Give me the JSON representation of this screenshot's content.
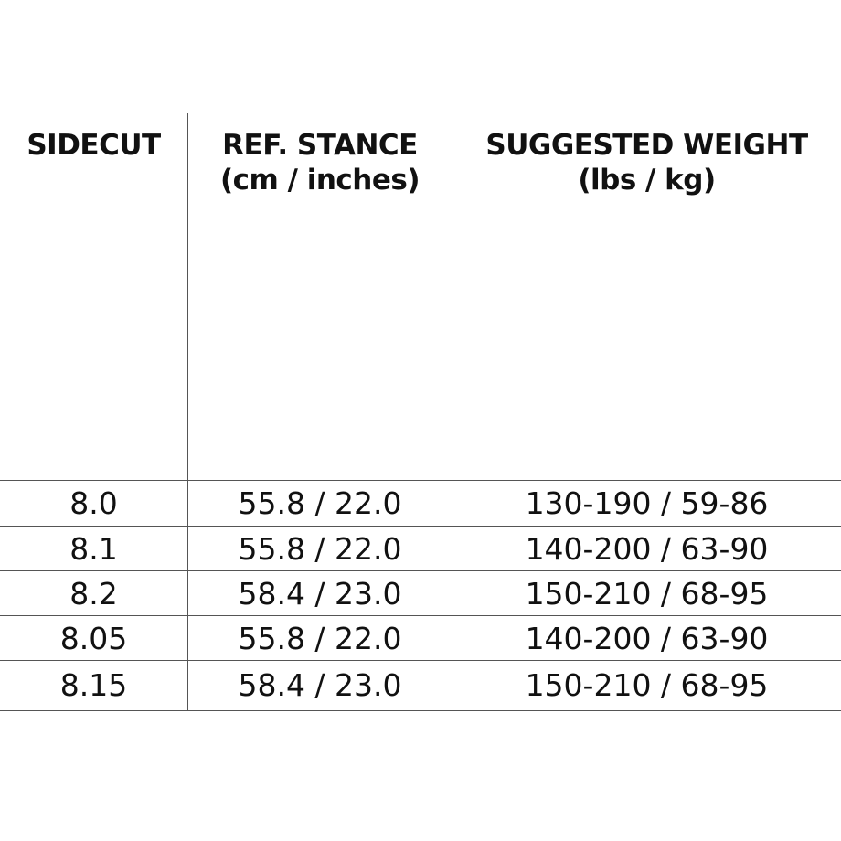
{
  "table": {
    "headers": [
      {
        "line1": "SIDECUT",
        "line2": ""
      },
      {
        "line1": "REF. STANCE",
        "line2": "(cm / inches)"
      },
      {
        "line1": "SUGGESTED WEIGHT",
        "line2": "(lbs / kg)"
      }
    ],
    "rows": [
      [
        "8.0",
        "55.8 / 22.0",
        "130-190 / 59-86"
      ],
      [
        "8.1",
        "55.8 / 22.0",
        "140-200 / 63-90"
      ],
      [
        "8.2",
        "58.4 / 23.0",
        "150-210 / 68-95"
      ],
      [
        "8.05",
        "55.8 / 22.0",
        "140-200 / 63-90"
      ],
      [
        "8.15",
        "58.4 / 23.0",
        "150-210 / 68-95"
      ]
    ]
  }
}
